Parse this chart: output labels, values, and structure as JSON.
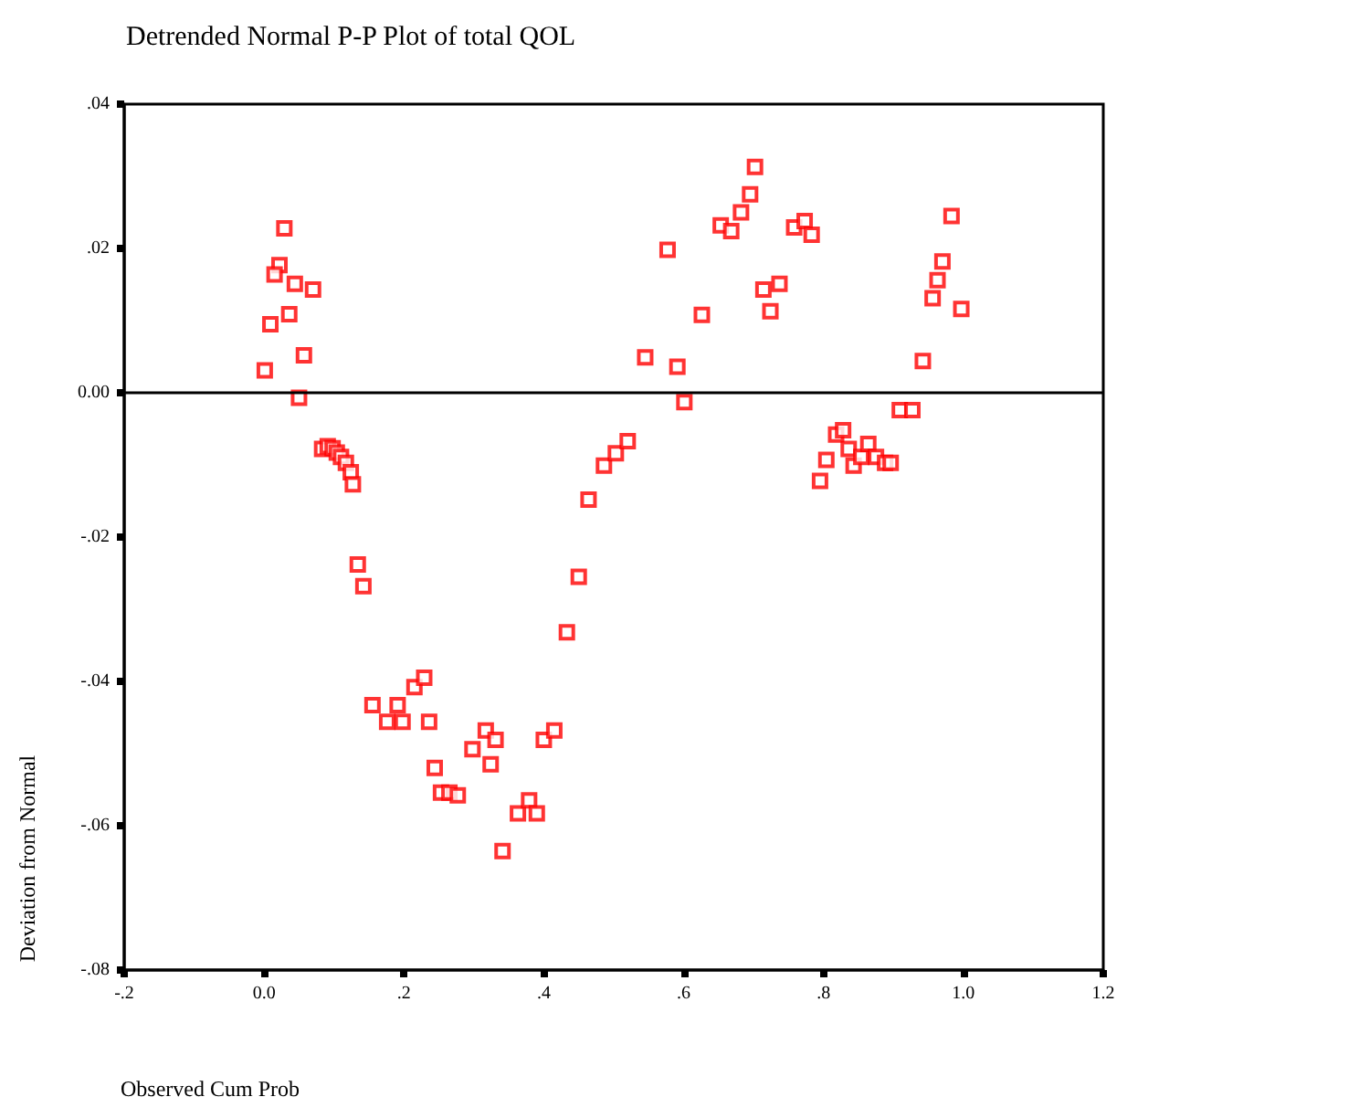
{
  "chart_data": {
    "type": "scatter",
    "title": "Detrended Normal P-P Plot of total QOL",
    "xlabel": "Observed Cum Prob",
    "ylabel": "Deviation from Normal",
    "x": [
      0.029,
      0.022,
      0.015,
      0.044,
      0.07,
      0.036,
      0.009,
      0.057,
      0.001,
      0.05,
      0.083,
      0.091,
      0.098,
      0.104,
      0.11,
      0.117,
      0.124,
      0.127,
      0.134,
      0.142,
      0.155,
      0.176,
      0.191,
      0.198,
      0.215,
      0.229,
      0.236,
      0.244,
      0.253,
      0.265,
      0.277,
      0.298,
      0.317,
      0.324,
      0.331,
      0.341,
      0.363,
      0.379,
      0.39,
      0.4,
      0.415,
      0.433,
      0.45,
      0.464,
      0.486,
      0.503,
      0.52,
      0.545,
      0.577,
      0.591,
      0.601,
      0.626,
      0.653,
      0.668,
      0.682,
      0.695,
      0.702,
      0.714,
      0.724,
      0.737,
      0.758,
      0.773,
      0.783,
      0.795,
      0.804,
      0.818,
      0.828,
      0.836,
      0.843,
      0.854,
      0.864,
      0.875,
      0.888,
      0.896,
      0.909,
      0.927,
      0.942,
      0.956,
      0.963,
      0.97,
      0.983,
      0.997
    ],
    "series": [
      {
        "color": "#ff0000",
        "values": [
          0.0228,
          0.0177,
          0.0164,
          0.0151,
          0.0143,
          0.0109,
          0.0095,
          0.0052,
          0.0031,
          -0.0007,
          -0.0078,
          -0.0074,
          -0.0077,
          -0.0083,
          -0.0089,
          -0.0097,
          -0.011,
          -0.0127,
          -0.0238,
          -0.0268,
          -0.0433,
          -0.0456,
          -0.0433,
          -0.0456,
          -0.0408,
          -0.0395,
          -0.0456,
          -0.052,
          -0.0554,
          -0.0554,
          -0.0558,
          -0.0494,
          -0.0468,
          -0.0515,
          -0.0481,
          -0.0635,
          -0.0583,
          -0.0565,
          -0.0583,
          -0.0481,
          -0.0468,
          -0.0332,
          -0.0255,
          -0.0148,
          -0.0101,
          -0.0084,
          -0.0067,
          0.0049,
          0.0198,
          0.0036,
          -0.0013,
          0.0108,
          0.0232,
          0.0224,
          0.025,
          0.0275,
          0.0313,
          0.0143,
          0.0113,
          0.0151,
          0.0229,
          0.0238,
          0.0219,
          -0.0122,
          -0.0093,
          -0.0058,
          -0.0052,
          -0.0078,
          -0.0101,
          -0.0089,
          -0.0071,
          -0.0089,
          -0.0097,
          -0.0097,
          -0.0024,
          -0.0024,
          0.0044,
          0.0131,
          0.0156,
          0.0182,
          0.0245,
          0.0116
        ]
      }
    ],
    "marker": "square",
    "grid": false,
    "legend": false,
    "xlim": [
      -0.2,
      1.2
    ],
    "xticks": [
      {
        "value": -0.2,
        "label": "-.2"
      },
      {
        "value": 0,
        "label": "0.0"
      },
      {
        "value": 0.2,
        "label": ".2"
      },
      {
        "value": 0.4,
        "label": ".4"
      },
      {
        "value": 0.6,
        "label": ".6"
      },
      {
        "value": 0.8,
        "label": ".8"
      },
      {
        "value": 1.0,
        "label": "1.0"
      },
      {
        "value": 1.2,
        "label": "1.2"
      }
    ],
    "ylim": [
      -0.08,
      0.04
    ],
    "yticks": [
      {
        "value": -0.08,
        "label": "-.08"
      },
      {
        "value": -0.06,
        "label": "-.06"
      },
      {
        "value": -0.04,
        "label": "-.04"
      },
      {
        "value": -0.02,
        "label": "-.02"
      },
      {
        "value": 0,
        "label": "0.00"
      },
      {
        "value": 0.02,
        "label": ".02"
      },
      {
        "value": 0.04,
        "label": ".04"
      }
    ],
    "ref_lines": [
      {
        "axis": "y",
        "value": 0,
        "color": "#000000"
      }
    ]
  }
}
